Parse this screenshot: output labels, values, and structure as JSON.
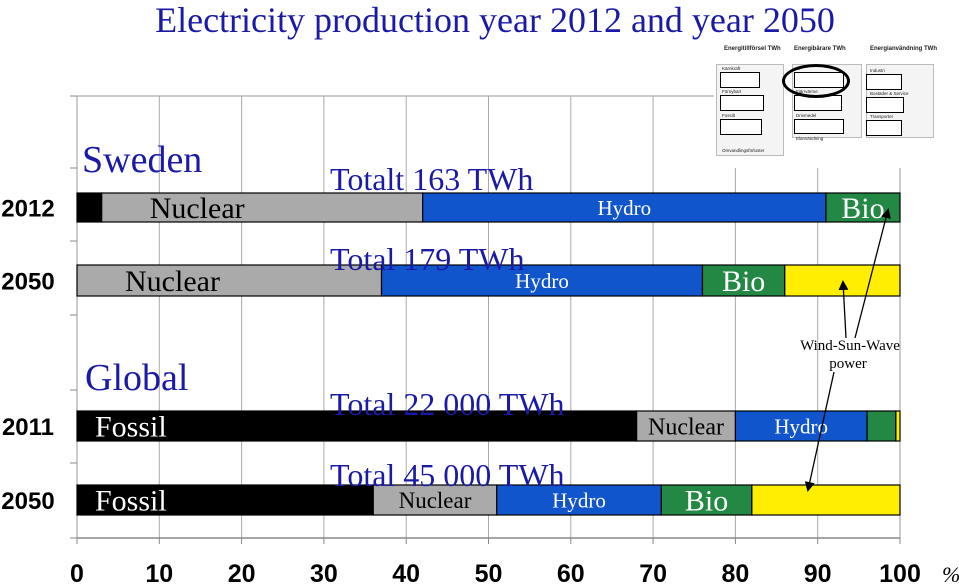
{
  "title": "Electricity production year 2012 and year 2050",
  "chart_data": {
    "type": "bar",
    "orientation": "horizontal",
    "stacked": true,
    "title": "Electricity production year 2012 and year 2050",
    "x_unit": "%",
    "xlim": [
      0,
      100
    ],
    "x_ticks": [
      0,
      10,
      20,
      30,
      40,
      50,
      60,
      70,
      80,
      90,
      100
    ],
    "grid": true,
    "colors": {
      "fossil": "#000000",
      "nuclear": "#aaaaaa",
      "hydro": "#1155cc",
      "bio": "#228844",
      "wind_sun_wave": "#ffee00"
    },
    "groups": [
      {
        "name": "Sweden",
        "rows": [
          {
            "year": "2012",
            "total_label": "Totalt 163 TWh",
            "segments": [
              {
                "key": "fossil",
                "label": "",
                "value": 3
              },
              {
                "key": "nuclear",
                "label": "Nuclear",
                "value": 39
              },
              {
                "key": "hydro",
                "label": "Hydro",
                "value": 49
              },
              {
                "key": "bio",
                "label": "Bio",
                "value": 9
              }
            ]
          },
          {
            "year": "2050",
            "total_label": "Total  179 TWh",
            "segments": [
              {
                "key": "nuclear",
                "label": "Nuclear",
                "value": 37
              },
              {
                "key": "hydro",
                "label": "Hydro",
                "value": 39
              },
              {
                "key": "bio",
                "label": "Bio",
                "value": 10
              },
              {
                "key": "wind_sun_wave",
                "label": "",
                "value": 14
              }
            ]
          }
        ]
      },
      {
        "name": "Global",
        "rows": [
          {
            "year": "2011",
            "total_label": "Total 22 000 TWh",
            "segments": [
              {
                "key": "fossil",
                "label": "Fossil",
                "value": 68
              },
              {
                "key": "nuclear",
                "label": "Nuclear",
                "value": 12
              },
              {
                "key": "hydro",
                "label": "Hydro",
                "value": 16
              },
              {
                "key": "bio",
                "label": "",
                "value": 3.5
              },
              {
                "key": "wind_sun_wave",
                "label": "",
                "value": 0.5
              }
            ]
          },
          {
            "year": "2050",
            "total_label": "Total 45 000 TWh",
            "segments": [
              {
                "key": "fossil",
                "label": "Fossil",
                "value": 36
              },
              {
                "key": "nuclear",
                "label": "Nuclear",
                "value": 15
              },
              {
                "key": "hydro",
                "label": "Hydro",
                "value": 20
              },
              {
                "key": "bio",
                "label": "Bio",
                "value": 11
              },
              {
                "key": "wind_sun_wave",
                "label": "",
                "value": 18
              }
            ]
          }
        ]
      }
    ],
    "annotations": [
      {
        "text": "Wind-Sun-Wave power"
      }
    ]
  },
  "inset": {
    "columns": [
      {
        "title": "Energitillförsel TWh",
        "items": [
          "Kärnkraft",
          "Förnybart",
          "Fossilt",
          "Omvandlingsförluster"
        ]
      },
      {
        "title": "Energibärare TWh",
        "items": [
          "El",
          "Fjärrvärme",
          "Drivmedel",
          "Elanvändning"
        ]
      },
      {
        "title": "Energianvändning TWh",
        "items": [
          "Industri",
          "Bostäder & Service",
          "Transporter"
        ]
      }
    ]
  }
}
